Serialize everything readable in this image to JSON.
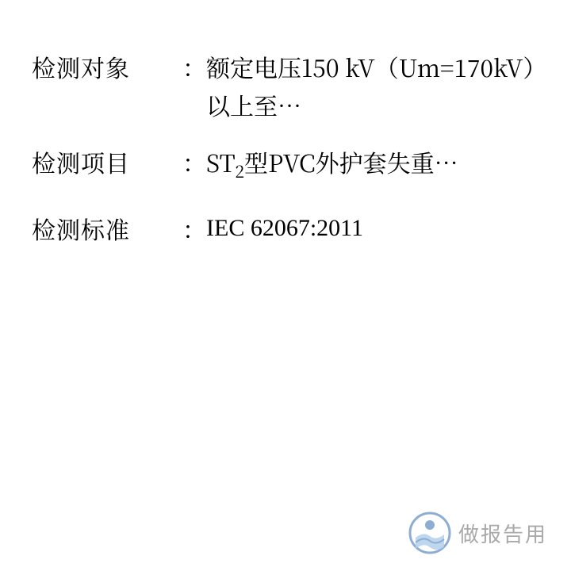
{
  "rows": [
    {
      "label": "检测对象",
      "value_parts": [
        {
          "text": "额定电压150 kV（Um=170kV）以上至…"
        }
      ]
    },
    {
      "label": "检测项目",
      "value_parts": [
        {
          "text": "ST"
        },
        {
          "text": "2",
          "sub": true
        },
        {
          "text": "型PVC外护套失重…"
        }
      ]
    },
    {
      "label": "检测标准",
      "value_parts": [
        {
          "text": "IEC 62067:2011"
        }
      ],
      "value_class": "std-value"
    }
  ],
  "watermark_text": "做报告用",
  "colors": {
    "text": "#000000",
    "background": "#ffffff",
    "watermark": "#555555",
    "logo_ring": "#1f5ea8",
    "logo_inner": "#1f5ea8",
    "logo_wave": "#6aa0d8"
  },
  "fontsize_label": 30,
  "fontsize_value": 30,
  "line_height": 48
}
